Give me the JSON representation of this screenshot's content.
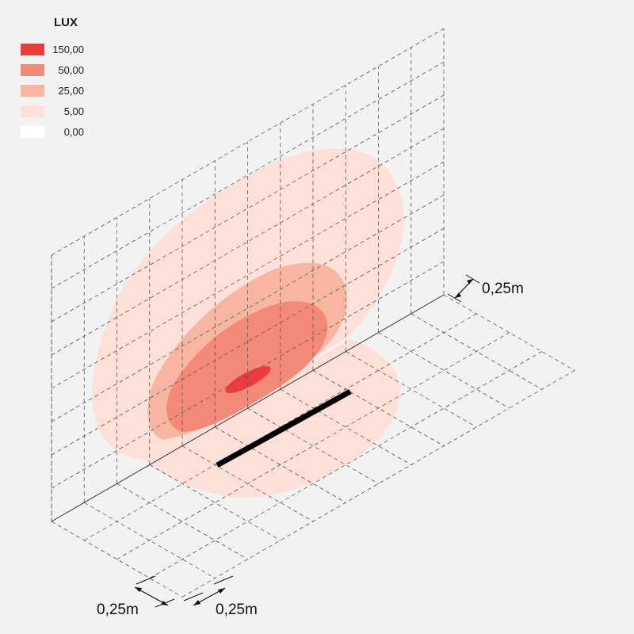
{
  "legend": {
    "title": "LUX",
    "items": [
      {
        "value": "150,00",
        "color": "#ee3b3b"
      },
      {
        "value": "50,00",
        "color": "#f38a78"
      },
      {
        "value": "25,00",
        "color": "#f8b6a2"
      },
      {
        "value": "5,00",
        "color": "#fde0d8"
      },
      {
        "value": "0,00",
        "color": "#ffffff"
      }
    ]
  },
  "dimensions": {
    "wall_cell": "0,25m",
    "floor_depth_cell": "0,25m",
    "floor_width_cell": "0,25m"
  },
  "colors": {
    "background": "#f2f2f2",
    "grid_lines": "#555555",
    "luminaire": "#000000"
  }
}
